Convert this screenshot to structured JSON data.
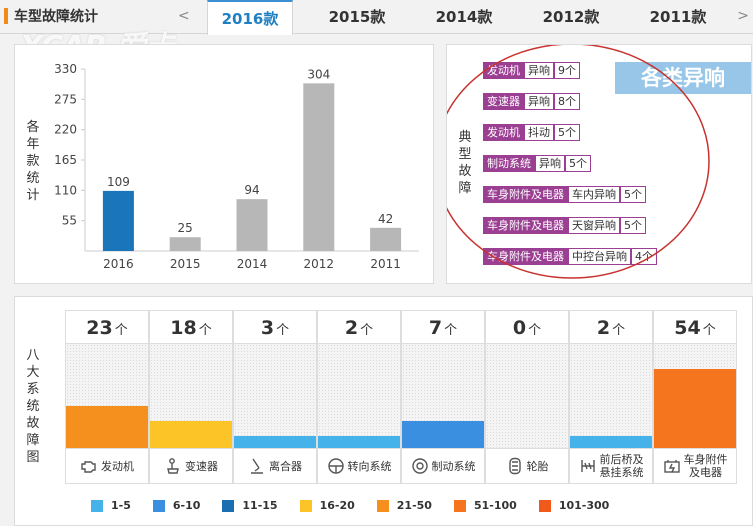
{
  "header": {
    "title": "车型故障统计",
    "prev_glyph": "<",
    "next_glyph": ">",
    "tabs": [
      {
        "label": "2016款",
        "active": true
      },
      {
        "label": "2015款",
        "active": false
      },
      {
        "label": "2014款",
        "active": false
      },
      {
        "label": "2012款",
        "active": false
      },
      {
        "label": "2011款",
        "active": false
      }
    ]
  },
  "watermark": "XCAR 爱卡",
  "colors": {
    "accent": "#1f7fc3",
    "title_bar": "#f08a1a",
    "active_bar": "#1a75bb",
    "inactive_bar": "#b7b7b7",
    "fault_purple": "#9b3f93",
    "oval_red": "#c8322f"
  },
  "bar_chart_panel": {
    "vertical_label": "各年款统计"
  },
  "chart_data": {
    "type": "bar",
    "categories": [
      "2016",
      "2015",
      "2014",
      "2012",
      "2011"
    ],
    "values": [
      109,
      25,
      94,
      304,
      42
    ],
    "highlight_index": 0,
    "ylim": [
      0,
      330
    ],
    "yticks": [
      55,
      110,
      165,
      220,
      275,
      330
    ],
    "grid": false,
    "data_labels": true
  },
  "faults_panel": {
    "vertical_label": "典型故障",
    "badge": "各类异响",
    "items": [
      {
        "part": "发动机",
        "issue": "异响",
        "count": "9个"
      },
      {
        "part": "变速器",
        "issue": "异响",
        "count": "8个"
      },
      {
        "part": "发动机",
        "issue": "抖动",
        "count": "5个"
      },
      {
        "part": "制动系统",
        "issue": "异响",
        "count": "5个"
      },
      {
        "part": "车身附件及电器",
        "issue": "车内异响",
        "count": "5个"
      },
      {
        "part": "车身附件及电器",
        "issue": "天窗异响",
        "count": "5个"
      },
      {
        "part": "车身附件及电器",
        "issue": "中控台异响",
        "count": "4个"
      }
    ]
  },
  "systems_panel": {
    "vertical_label": "八大系统故障图",
    "unit": "个",
    "systems": [
      {
        "name": "发动机",
        "count": "23",
        "level": 0.4,
        "color": "#f5901e",
        "icon": "engine-icon"
      },
      {
        "name": "变速器",
        "count": "18",
        "level": 0.26,
        "color": "#fcc427",
        "icon": "gear-shift-icon"
      },
      {
        "name": "离合器",
        "count": "3",
        "level": 0.12,
        "color": "#45b3ea",
        "icon": "clutch-pedal-icon"
      },
      {
        "name": "转向系统",
        "count": "2",
        "level": 0.12,
        "color": "#45b3ea",
        "icon": "steering-wheel-icon"
      },
      {
        "name": "制动系统",
        "count": "7",
        "level": 0.26,
        "color": "#3a8fe0",
        "icon": "brake-disc-icon"
      },
      {
        "name": "轮胎",
        "count": "0",
        "level": 0,
        "color": "#45b3ea",
        "icon": "tire-icon"
      },
      {
        "name": "前后桥及悬挂系统",
        "name_lines": [
          "前后桥及",
          "悬挂系统"
        ],
        "count": "2",
        "level": 0.12,
        "color": "#45b3ea",
        "icon": "suspension-icon"
      },
      {
        "name": "车身附件及电器",
        "name_lines": [
          "车身附件",
          "及电器"
        ],
        "count": "54",
        "level": 0.76,
        "color": "#f5741e",
        "icon": "battery-icon"
      }
    ],
    "legend": [
      {
        "range": "1-5",
        "color": "#45b3ea"
      },
      {
        "range": "6-10",
        "color": "#3a8fe0"
      },
      {
        "range": "11-15",
        "color": "#1a6fb0"
      },
      {
        "range": "16-20",
        "color": "#fcc427"
      },
      {
        "range": "21-50",
        "color": "#f5901e"
      },
      {
        "range": "51-100",
        "color": "#f5741e"
      },
      {
        "range": "101-300",
        "color": "#f05a1a"
      }
    ]
  }
}
